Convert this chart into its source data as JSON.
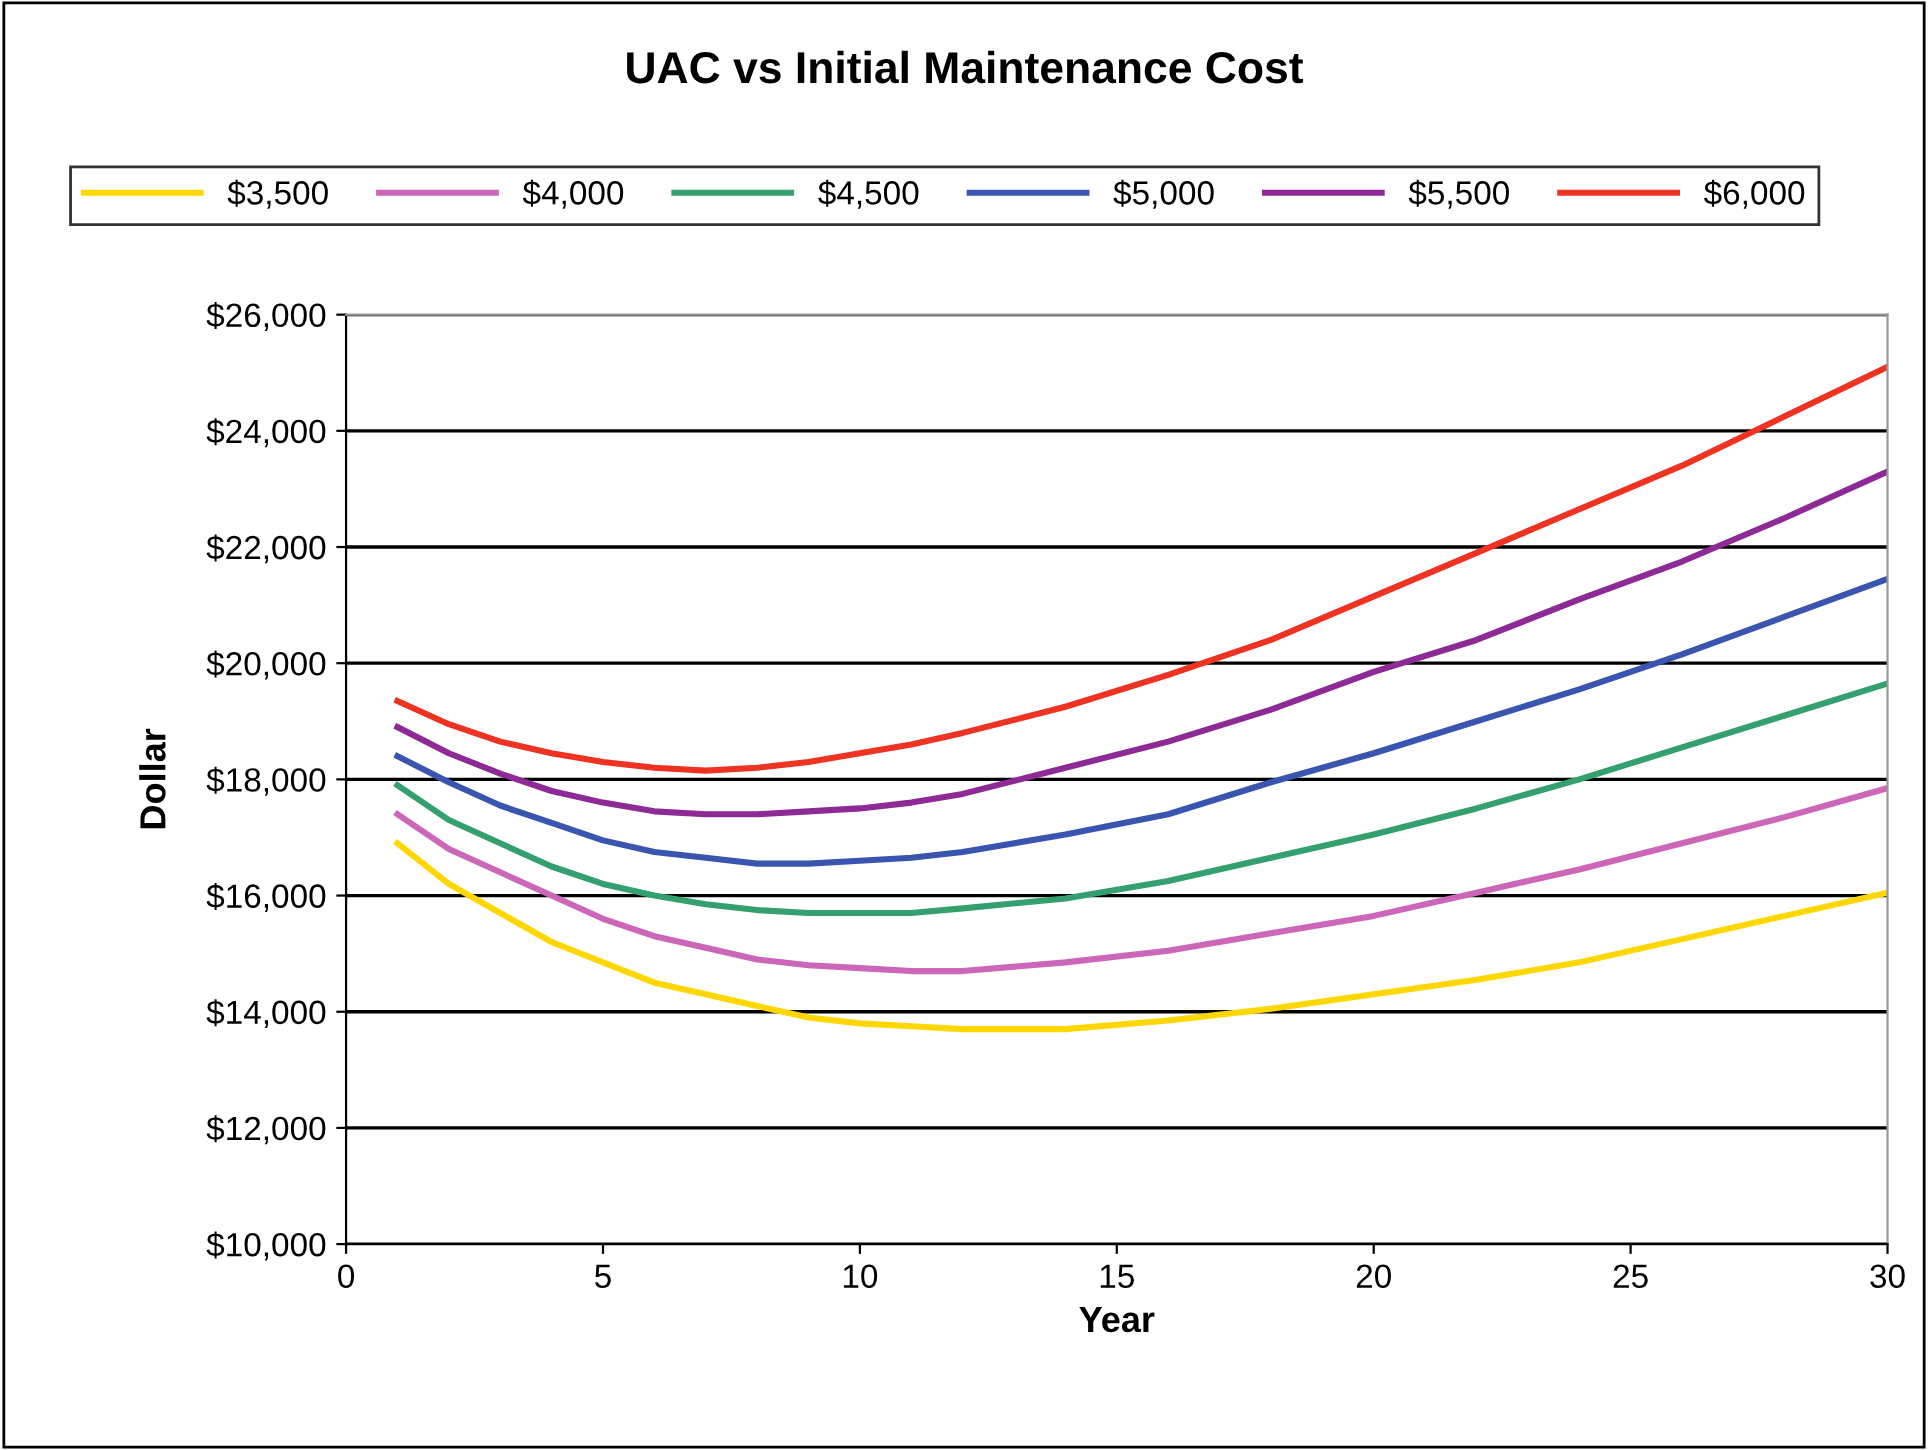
{
  "chart_data": {
    "type": "line",
    "title": "UAC vs Initial Maintenance Cost",
    "xlabel": "Year",
    "ylabel": "Dollar",
    "x": [
      1,
      2,
      3,
      4,
      5,
      6,
      7,
      8,
      9,
      10,
      11,
      12,
      14,
      16,
      18,
      20,
      22,
      24,
      26,
      28,
      30
    ],
    "series": [
      {
        "name": "$3,500",
        "color": "#ffd700",
        "values": [
          16900,
          16200,
          15700,
          15200,
          14850,
          14500,
          14300,
          14100,
          13900,
          13800,
          13750,
          13700,
          13700,
          13850,
          14050,
          14300,
          14550,
          14850,
          15250,
          15650,
          16050
        ]
      },
      {
        "name": "$4,000",
        "color": "#cc66b8",
        "values": [
          17400,
          16800,
          16400,
          16000,
          15600,
          15300,
          15100,
          14900,
          14800,
          14750,
          14700,
          14700,
          14850,
          15050,
          15350,
          15650,
          16050,
          16450,
          16900,
          17350,
          17850
        ]
      },
      {
        "name": "$4,500",
        "color": "#33a06e",
        "values": [
          17900,
          17300,
          16900,
          16500,
          16200,
          16000,
          15850,
          15750,
          15700,
          15700,
          15700,
          15780,
          15950,
          16250,
          16650,
          17050,
          17500,
          18000,
          18550,
          19100,
          19650
        ]
      },
      {
        "name": "$5,000",
        "color": "#3a55b0",
        "values": [
          18400,
          17950,
          17550,
          17250,
          16950,
          16750,
          16650,
          16550,
          16550,
          16600,
          16650,
          16750,
          17050,
          17400,
          17950,
          18450,
          19000,
          19550,
          20150,
          20800,
          21450
        ]
      },
      {
        "name": "$5,500",
        "color": "#8e2a96",
        "values": [
          18900,
          18450,
          18100,
          17800,
          17600,
          17450,
          17400,
          17400,
          17450,
          17500,
          17600,
          17750,
          18200,
          18650,
          19200,
          19850,
          20400,
          21100,
          21750,
          22500,
          23300
        ]
      },
      {
        "name": "$6,000",
        "color": "#ee3322",
        "values": [
          19350,
          18950,
          18650,
          18450,
          18300,
          18200,
          18150,
          18200,
          18300,
          18450,
          18600,
          18800,
          19250,
          19800,
          20400,
          21150,
          21900,
          22650,
          23400,
          24250,
          25100
        ]
      }
    ],
    "xlim": [
      0,
      30
    ],
    "xticks": [
      0,
      5,
      10,
      15,
      20,
      25,
      30
    ],
    "ylim": [
      10000,
      26000
    ],
    "yticks": [
      {
        "value": 10000,
        "label": "$10,000"
      },
      {
        "value": 12000,
        "label": "$12,000"
      },
      {
        "value": 14000,
        "label": "$14,000"
      },
      {
        "value": 16000,
        "label": "$16,000"
      },
      {
        "value": 18000,
        "label": "$18,000"
      },
      {
        "value": 20000,
        "label": "$20,000"
      },
      {
        "value": 22000,
        "label": "$22,000"
      },
      {
        "value": 24000,
        "label": "$24,000"
      },
      {
        "value": 26000,
        "label": "$26,000"
      }
    ],
    "grid": "y",
    "legend": "top",
    "marker": "none",
    "line_style": "solid"
  }
}
